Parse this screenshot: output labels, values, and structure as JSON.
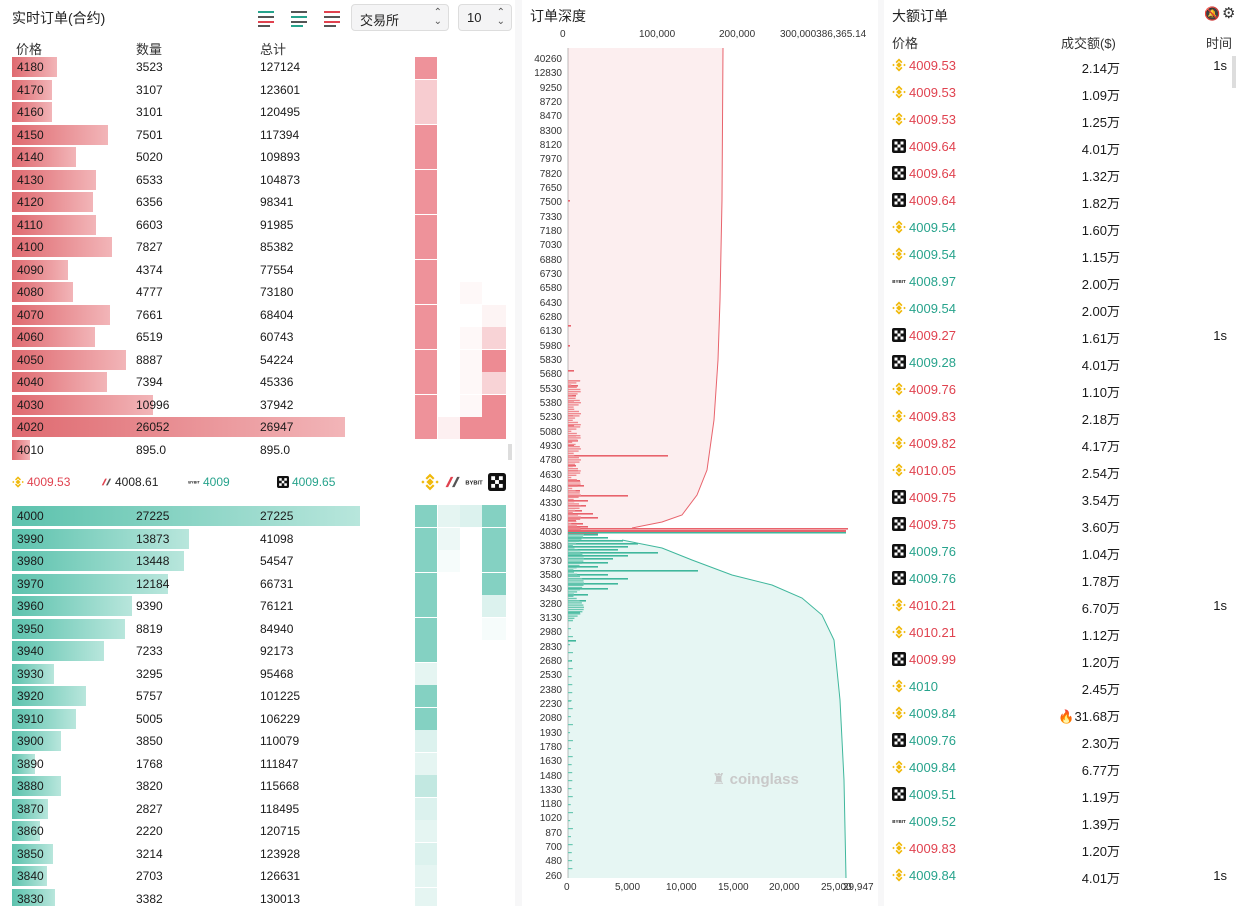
{
  "left": {
    "title": "实时订单(合约)",
    "exchange_select": "交易所",
    "depth_select": "10",
    "headers": {
      "price": "价格",
      "qty": "数量",
      "total": "总计"
    },
    "asks": [
      {
        "price": "4180",
        "qty": "3523",
        "total": "127124"
      },
      {
        "price": "4170",
        "qty": "3107",
        "total": "123601"
      },
      {
        "price": "4160",
        "qty": "3101",
        "total": "120495"
      },
      {
        "price": "4150",
        "qty": "7501",
        "total": "117394"
      },
      {
        "price": "4140",
        "qty": "5020",
        "total": "109893"
      },
      {
        "price": "4130",
        "qty": "6533",
        "total": "104873"
      },
      {
        "price": "4120",
        "qty": "6356",
        "total": "98341"
      },
      {
        "price": "4110",
        "qty": "6603",
        "total": "91985"
      },
      {
        "price": "4100",
        "qty": "7827",
        "total": "85382"
      },
      {
        "price": "4090",
        "qty": "4374",
        "total": "77554"
      },
      {
        "price": "4080",
        "qty": "4777",
        "total": "73180"
      },
      {
        "price": "4070",
        "qty": "7661",
        "total": "68404"
      },
      {
        "price": "4060",
        "qty": "6519",
        "total": "60743"
      },
      {
        "price": "4050",
        "qty": "8887",
        "total": "54224"
      },
      {
        "price": "4040",
        "qty": "7394",
        "total": "45336"
      },
      {
        "price": "4030",
        "qty": "10996",
        "total": "37942"
      },
      {
        "price": "4020",
        "qty": "26052",
        "total": "26947"
      },
      {
        "price": "4010",
        "qty": "895.0",
        "total": "895.0"
      }
    ],
    "bids": [
      {
        "price": "4000",
        "qty": "27225",
        "total": "27225"
      },
      {
        "price": "3990",
        "qty": "13873",
        "total": "41098"
      },
      {
        "price": "3980",
        "qty": "13448",
        "total": "54547"
      },
      {
        "price": "3970",
        "qty": "12184",
        "total": "66731"
      },
      {
        "price": "3960",
        "qty": "9390",
        "total": "76121"
      },
      {
        "price": "3950",
        "qty": "8819",
        "total": "84940"
      },
      {
        "price": "3940",
        "qty": "7233",
        "total": "92173"
      },
      {
        "price": "3930",
        "qty": "3295",
        "total": "95468"
      },
      {
        "price": "3920",
        "qty": "5757",
        "total": "101225"
      },
      {
        "price": "3910",
        "qty": "5005",
        "total": "106229"
      },
      {
        "price": "3900",
        "qty": "3850",
        "total": "110079"
      },
      {
        "price": "3890",
        "qty": "1768",
        "total": "111847"
      },
      {
        "price": "3880",
        "qty": "3820",
        "total": "115668"
      },
      {
        "price": "3870",
        "qty": "2827",
        "total": "118495"
      },
      {
        "price": "3860",
        "qty": "2220",
        "total": "120715"
      },
      {
        "price": "3850",
        "qty": "3214",
        "total": "123928"
      },
      {
        "price": "3840",
        "qty": "2703",
        "total": "126631"
      },
      {
        "price": "3830",
        "qty": "3382",
        "total": "130013"
      }
    ],
    "tickers": [
      {
        "exchange": "binance",
        "price": "4009.53",
        "color": "#e0424f"
      },
      {
        "exchange": "bitmex",
        "price": "4008.61",
        "color": "#222222"
      },
      {
        "exchange": "bybit",
        "price": "4009",
        "color": "#27a38c"
      },
      {
        "exchange": "okx",
        "price": "4009.65",
        "color": "#27a38c"
      }
    ]
  },
  "middle": {
    "title": "订单深度",
    "top_axis": [
      "0",
      "100,000",
      "200,000",
      "300,000386,365.14"
    ],
    "bottom_axis": [
      "0",
      "5,000",
      "10,000",
      "15,000",
      "20,000",
      "25,000",
      "29,947"
    ],
    "y_labels": [
      "40260",
      "12830",
      "9250",
      "8720",
      "8470",
      "8300",
      "8120",
      "7970",
      "7820",
      "7650",
      "7500",
      "7330",
      "7180",
      "7030",
      "6880",
      "6730",
      "6580",
      "6430",
      "6280",
      "6130",
      "5980",
      "5830",
      "5680",
      "5530",
      "5380",
      "5230",
      "5080",
      "4930",
      "4780",
      "4630",
      "4480",
      "4330",
      "4180",
      "4030",
      "3880",
      "3730",
      "3580",
      "3430",
      "3280",
      "3130",
      "2980",
      "2830",
      "2680",
      "2530",
      "2380",
      "2230",
      "2080",
      "1930",
      "1780",
      "1630",
      "1480",
      "1330",
      "1180",
      "1020",
      "870",
      "700",
      "480",
      "260"
    ],
    "watermark": "coinglass"
  },
  "right": {
    "title": "大额订单",
    "headers": {
      "price": "价格",
      "amount": "成交额($)",
      "time": "时间"
    },
    "rows": [
      {
        "ex": "binance",
        "price": "4009.53",
        "side": "sell",
        "amount": "2.14万",
        "time": "1s"
      },
      {
        "ex": "binance",
        "price": "4009.53",
        "side": "sell",
        "amount": "1.09万",
        "time": ""
      },
      {
        "ex": "binance",
        "price": "4009.53",
        "side": "sell",
        "amount": "1.25万",
        "time": ""
      },
      {
        "ex": "okx",
        "price": "4009.64",
        "side": "sell",
        "amount": "4.01万",
        "time": ""
      },
      {
        "ex": "okx",
        "price": "4009.64",
        "side": "sell",
        "amount": "1.32万",
        "time": ""
      },
      {
        "ex": "okx",
        "price": "4009.64",
        "side": "sell",
        "amount": "1.82万",
        "time": ""
      },
      {
        "ex": "binance",
        "price": "4009.54",
        "side": "buy",
        "amount": "1.60万",
        "time": ""
      },
      {
        "ex": "binance",
        "price": "4009.54",
        "side": "buy",
        "amount": "1.15万",
        "time": ""
      },
      {
        "ex": "bybit",
        "price": "4008.97",
        "side": "buy",
        "amount": "2.00万",
        "time": ""
      },
      {
        "ex": "binance",
        "price": "4009.54",
        "side": "buy",
        "amount": "2.00万",
        "time": ""
      },
      {
        "ex": "okx",
        "price": "4009.27",
        "side": "sell",
        "amount": "1.61万",
        "time": "1s"
      },
      {
        "ex": "okx",
        "price": "4009.28",
        "side": "buy",
        "amount": "4.01万",
        "time": ""
      },
      {
        "ex": "binance",
        "price": "4009.76",
        "side": "sell",
        "amount": "1.10万",
        "time": ""
      },
      {
        "ex": "binance",
        "price": "4009.83",
        "side": "sell",
        "amount": "2.18万",
        "time": ""
      },
      {
        "ex": "binance",
        "price": "4009.82",
        "side": "sell",
        "amount": "4.17万",
        "time": ""
      },
      {
        "ex": "binance",
        "price": "4010.05",
        "side": "sell",
        "amount": "2.54万",
        "time": ""
      },
      {
        "ex": "okx",
        "price": "4009.75",
        "side": "sell",
        "amount": "3.54万",
        "time": ""
      },
      {
        "ex": "okx",
        "price": "4009.75",
        "side": "sell",
        "amount": "3.60万",
        "time": ""
      },
      {
        "ex": "okx",
        "price": "4009.76",
        "side": "buy",
        "amount": "1.04万",
        "time": ""
      },
      {
        "ex": "okx",
        "price": "4009.76",
        "side": "buy",
        "amount": "1.78万",
        "time": ""
      },
      {
        "ex": "binance",
        "price": "4010.21",
        "side": "sell",
        "amount": "6.70万",
        "time": "1s"
      },
      {
        "ex": "binance",
        "price": "4010.21",
        "side": "sell",
        "amount": "1.12万",
        "time": ""
      },
      {
        "ex": "okx",
        "price": "4009.99",
        "side": "sell",
        "amount": "1.20万",
        "time": ""
      },
      {
        "ex": "binance",
        "price": "4010",
        "side": "buy",
        "amount": "2.45万",
        "time": ""
      },
      {
        "ex": "binance",
        "price": "4009.84",
        "side": "buy",
        "amount": "31.68万",
        "time": "",
        "hot": true
      },
      {
        "ex": "okx",
        "price": "4009.76",
        "side": "buy",
        "amount": "2.30万",
        "time": ""
      },
      {
        "ex": "binance",
        "price": "4009.84",
        "side": "buy",
        "amount": "6.77万",
        "time": ""
      },
      {
        "ex": "okx",
        "price": "4009.51",
        "side": "buy",
        "amount": "1.19万",
        "time": ""
      },
      {
        "ex": "bybit",
        "price": "4009.52",
        "side": "buy",
        "amount": "1.39万",
        "time": ""
      },
      {
        "ex": "binance",
        "price": "4009.83",
        "side": "sell",
        "amount": "1.20万",
        "time": ""
      },
      {
        "ex": "binance",
        "price": "4009.84",
        "side": "buy",
        "amount": "4.01万",
        "time": "1s"
      }
    ]
  },
  "colors": {
    "red": "#e0424f",
    "green": "#27a38c",
    "ask_bar": "#e98a8f",
    "bid_bar": "#8fd3c4",
    "binance": "#f0b90b"
  }
}
